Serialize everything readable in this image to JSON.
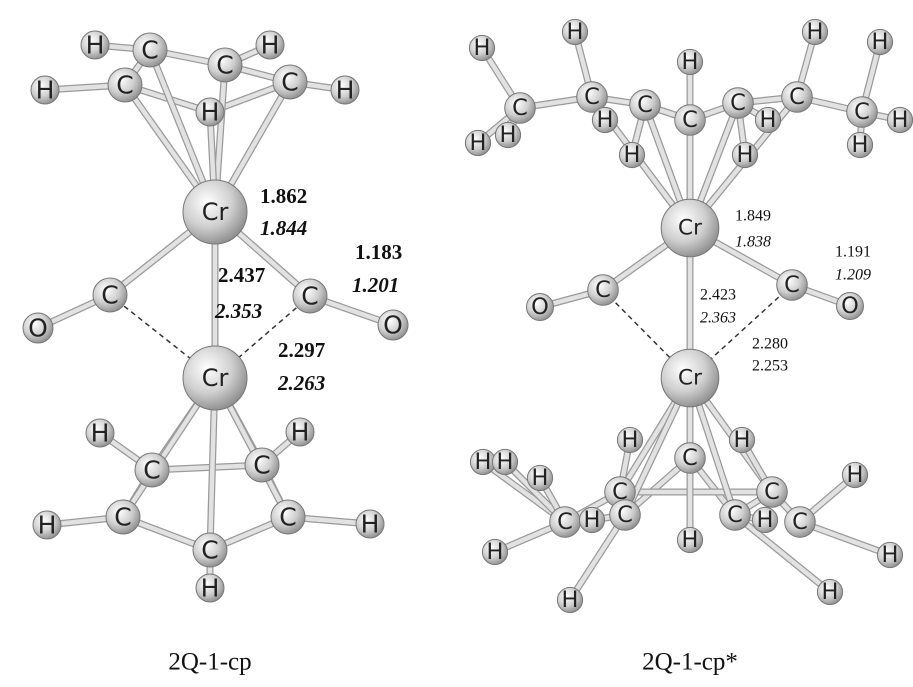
{
  "molecules": [
    {
      "caption": "2Q-1-cp",
      "atoms": [
        "H",
        "H",
        "C",
        "C",
        "C",
        "H",
        "C",
        "H",
        "H",
        "Cr",
        "C",
        "O",
        "C",
        "O",
        "Cr",
        "H",
        "C",
        "C",
        "H",
        "H",
        "C",
        "C",
        "H",
        "C",
        "H"
      ],
      "bond_lengths": [
        "1.862",
        "1.844",
        "1.183",
        "1.201",
        "2.437",
        "2.353",
        "2.297",
        "2.263"
      ]
    },
    {
      "caption": "2Q-1-cp*",
      "atoms": [
        "H",
        "H",
        "H",
        "H",
        "H",
        "C",
        "C",
        "H",
        "C",
        "C",
        "C",
        "H",
        "C",
        "C",
        "H",
        "H",
        "H",
        "H",
        "H",
        "H",
        "Cr",
        "C",
        "O",
        "C",
        "O",
        "Cr",
        "H",
        "H",
        "H",
        "H",
        "H",
        "C",
        "C",
        "H",
        "C",
        "C",
        "C",
        "H",
        "C",
        "C",
        "H",
        "H",
        "H",
        "H",
        "H",
        "H"
      ],
      "bond_lengths": [
        "1.849",
        "1.838",
        "1.191",
        "1.209",
        "2.423",
        "2.363",
        "2.280",
        "2.253"
      ]
    }
  ]
}
